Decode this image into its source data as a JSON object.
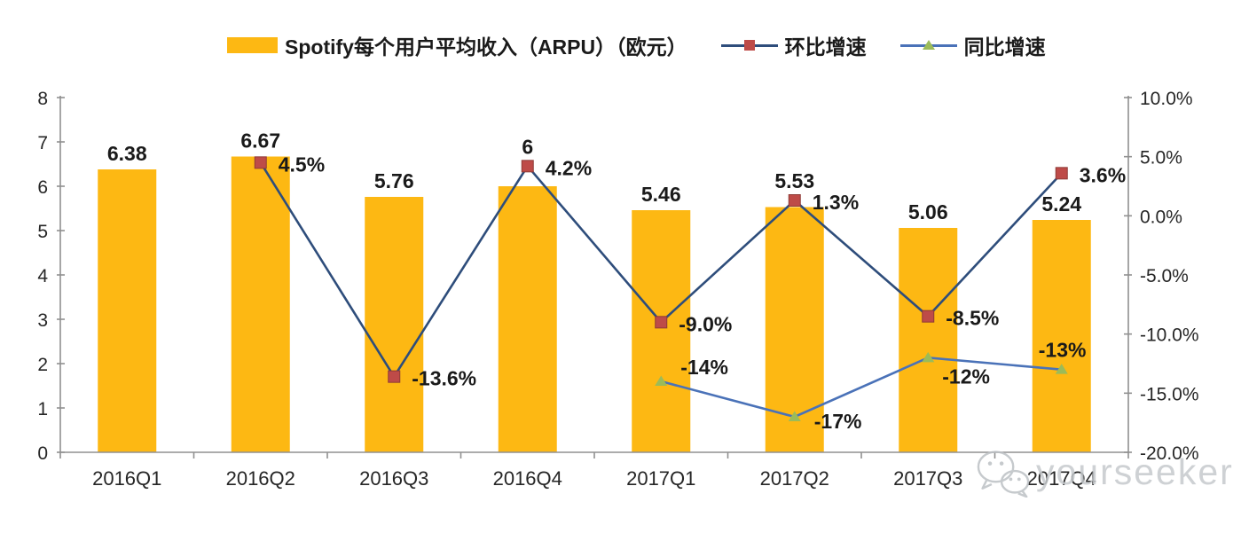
{
  "legend": {
    "position": "top",
    "items": [
      {
        "icon": "bar-swatch",
        "label": "Spotify每个用户平均收入（ARPU）（欧元）"
      },
      {
        "icon": "line-square-marker",
        "label": "环比增速"
      },
      {
        "icon": "line-triangle-marker",
        "label": "同比增速"
      }
    ]
  },
  "colors": {
    "bar": "#FDB813",
    "qoq_line": "#2E4D7B",
    "qoq_marker": "#BE4B48",
    "yoy_line": "#4A72B8",
    "yoy_marker": "#9BBB59",
    "axis": "#909090",
    "label_text": "#1a1a1a",
    "tick_text": "#262626",
    "watermark": "#c6cacd"
  },
  "chart_data": {
    "type": "bar",
    "title": "Spotify每个用户平均收入（ARPU）（欧元）",
    "categories": [
      "2016Q1",
      "2016Q2",
      "2016Q3",
      "2016Q4",
      "2017Q1",
      "2017Q2",
      "2017Q3",
      "2017Q4"
    ],
    "series": [
      {
        "name": "Spotify每个用户平均收入（ARPU）（欧元）",
        "chart": "bar",
        "axis": "left",
        "values": [
          6.38,
          6.67,
          5.76,
          6,
          5.46,
          5.53,
          5.06,
          5.24
        ],
        "data_labels": [
          "6.38",
          "6.67",
          "5.76",
          "6",
          "5.46",
          "5.53",
          "5.06",
          "5.24"
        ]
      },
      {
        "name": "环比增速",
        "chart": "line",
        "axis": "right",
        "marker": "square",
        "values": [
          null,
          4.5,
          -13.6,
          4.2,
          -9.0,
          1.3,
          -8.5,
          3.6
        ],
        "data_labels": [
          null,
          "4.5%",
          "-13.6%",
          "4.2%",
          "-9.0%",
          "1.3%",
          "-8.5%",
          "3.6%"
        ]
      },
      {
        "name": "同比增速",
        "chart": "line",
        "axis": "right",
        "marker": "triangle",
        "values": [
          null,
          null,
          null,
          null,
          -14,
          -17,
          -12,
          -13
        ],
        "data_labels": [
          null,
          null,
          null,
          null,
          "-14%",
          "-17%",
          "-12%",
          "-13%"
        ]
      }
    ],
    "left_axis": {
      "min": 0,
      "max": 8,
      "step": 1,
      "tick_labels": [
        "0",
        "1",
        "2",
        "3",
        "4",
        "5",
        "6",
        "7",
        "8"
      ]
    },
    "right_axis": {
      "min": -20,
      "max": 10,
      "step": 5,
      "tick_labels": [
        "10.0%",
        "5.0%",
        "0.0%",
        "-5.0%",
        "-10.0%",
        "-15.0%",
        "-20.0%"
      ]
    },
    "legend_position": "top",
    "gridlines": false
  },
  "watermark": {
    "icon": "wechat-icon",
    "text": "yourseeker"
  }
}
